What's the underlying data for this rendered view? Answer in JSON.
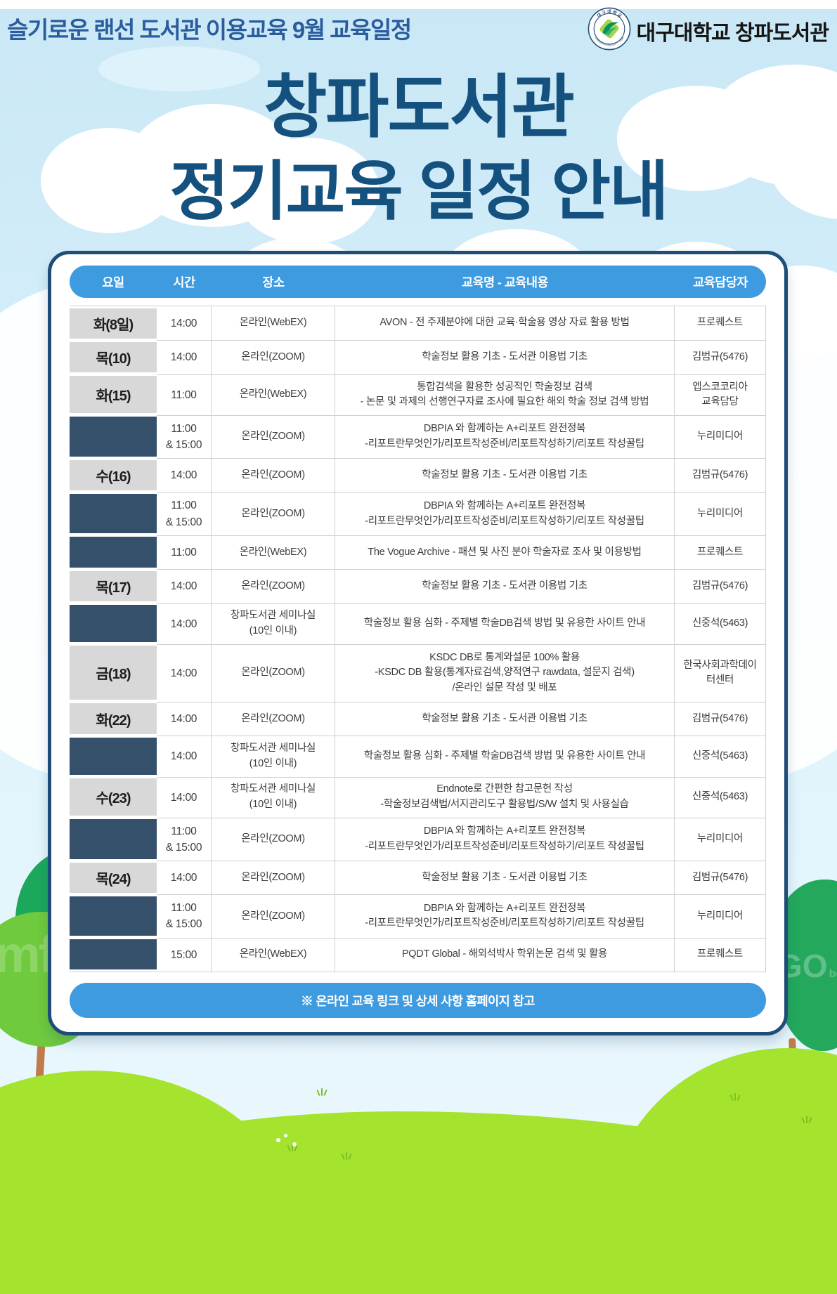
{
  "page": {
    "top_left_title": "슬기로운 랜선 도서관 이용교육 9월 교육일정",
    "org": {
      "name": "대구대학교 창파도서관",
      "logo_ring_top": "대구대학교",
      "logo_ring_bottom": "DAEGU UNIVERSITY 1956"
    },
    "main_title_line1": "창파도서관",
    "main_title_line2": "정기교육 일정 안내"
  },
  "table": {
    "columns": [
      "요일",
      "시간",
      "장소",
      "교육명 - 교육내용",
      "교육담당자"
    ],
    "rows": [
      {
        "day": "화(8일)",
        "day_style": "gray",
        "time": [
          "14:00"
        ],
        "place": [
          "온라인(WebEX)"
        ],
        "course": [
          "AVON - 전 주제분야에 대한 교육·학술용 영상 자료 활용 방법"
        ],
        "manager": [
          "프로퀘스트"
        ]
      },
      {
        "day": "목(10)",
        "day_style": "gray",
        "time": [
          "14:00"
        ],
        "place": [
          "온라인(ZOOM)"
        ],
        "course": [
          "학술정보 활용 기초 - 도서관 이용법 기초"
        ],
        "manager": [
          "김범규(5476)"
        ]
      },
      {
        "day": "화(15)",
        "day_style": "gray",
        "time": [
          "11:00"
        ],
        "place": [
          "온라인(WebEX)"
        ],
        "course": [
          "통합검색을 활용한 성공적인 학술정보 검색",
          "- 논문 및 과제의 선행연구자료 조사에 필요한 해외 학술 정보 검색 방법"
        ],
        "manager": [
          "엡스코코리아",
          "교육담당"
        ]
      },
      {
        "day": "",
        "day_style": "navy",
        "time": [
          "11:00",
          "& 15:00"
        ],
        "place": [
          "온라인(ZOOM)"
        ],
        "course": [
          "DBPIA 와 함께하는 A+리포트 완전정복",
          "-리포트란무엇인가/리포트작성준비/리포트작성하기/리포트 작성꿀팁"
        ],
        "manager": [
          "누리미디어"
        ]
      },
      {
        "day": "수(16)",
        "day_style": "gray",
        "time": [
          "14:00"
        ],
        "place": [
          "온라인(ZOOM)"
        ],
        "course": [
          "학술정보 활용 기초 - 도서관 이용법 기초"
        ],
        "manager": [
          "김범규(5476)"
        ]
      },
      {
        "day": "",
        "day_style": "navy",
        "time": [
          "11:00",
          "& 15:00"
        ],
        "place": [
          "온라인(ZOOM)"
        ],
        "course": [
          "DBPIA 와 함께하는 A+리포트 완전정복",
          "-리포트란무엇인가/리포트작성준비/리포트작성하기/리포트 작성꿀팁"
        ],
        "manager": [
          "누리미디어"
        ]
      },
      {
        "day": "",
        "day_style": "navy",
        "time": [
          "11:00"
        ],
        "place": [
          "온라인(WebEX)"
        ],
        "course": [
          "The Vogue Archive - 패션 및 사진 분야 학술자료 조사 및 이용방법"
        ],
        "manager": [
          "프로퀘스트"
        ]
      },
      {
        "day": "목(17)",
        "day_style": "gray",
        "time": [
          "14:00"
        ],
        "place": [
          "온라인(ZOOM)"
        ],
        "course": [
          "학술정보 활용 기초 - 도서관 이용법 기초"
        ],
        "manager": [
          "김범규(5476)"
        ]
      },
      {
        "day": "",
        "day_style": "navy",
        "time": [
          "14:00"
        ],
        "place": [
          "창파도서관 세미나실",
          "(10인 이내)"
        ],
        "course": [
          "학술정보 활용 심화 - 주제별 학술DB검색 방법 및 유용한 사이트 안내"
        ],
        "manager": [
          "신중석(5463)"
        ]
      },
      {
        "day": "금(18)",
        "day_style": "gray",
        "time": [
          "14:00"
        ],
        "place": [
          "온라인(ZOOM)"
        ],
        "course": [
          "KSDC DB로 통계와설문 100% 활용",
          "-KSDC DB 활용(통계자료검색,양적연구 rawdata, 설문지 검색)",
          "/온라인 설문 작성 및 배포"
        ],
        "manager": [
          "한국사회과학데이",
          "터센터"
        ]
      },
      {
        "day": "화(22)",
        "day_style": "gray",
        "time": [
          "14:00"
        ],
        "place": [
          "온라인(ZOOM)"
        ],
        "course": [
          "학술정보 활용 기초 - 도서관 이용법 기초"
        ],
        "manager": [
          "김범규(5476)"
        ]
      },
      {
        "day": "",
        "day_style": "navy",
        "time": [
          "14:00"
        ],
        "place": [
          "창파도서관 세미나실",
          "(10인 이내)"
        ],
        "course": [
          "학술정보 활용 심화 - 주제별 학술DB검색 방법 및 유용한 사이트 안내"
        ],
        "manager": [
          "신중석(5463)"
        ]
      },
      {
        "day": "수(23)",
        "day_style": "gray",
        "time": [
          "14:00"
        ],
        "place": [
          "창파도서관 세미나실",
          "(10인 이내)"
        ],
        "course": [
          "Endnote로 간편한 참고문헌 작성",
          "-학술정보검색법/서지관리도구 활용법/S/W 설치 및 사용실습"
        ],
        "manager": [
          "신중석(5463)"
        ]
      },
      {
        "day": "",
        "day_style": "navy",
        "time": [
          "11:00",
          "& 15:00"
        ],
        "place": [
          "온라인(ZOOM)"
        ],
        "course": [
          "DBPIA 와 함께하는 A+리포트 완전정복",
          "-리포트란무엇인가/리포트작성준비/리포트작성하기/리포트 작성꿀팁"
        ],
        "manager": [
          "누리미디어"
        ]
      },
      {
        "day": "목(24)",
        "day_style": "gray",
        "time": [
          "14:00"
        ],
        "place": [
          "온라인(ZOOM)"
        ],
        "course": [
          "학술정보 활용 기초 - 도서관 이용법 기초"
        ],
        "manager": [
          "김범규(5476)"
        ]
      },
      {
        "day": "",
        "day_style": "navy",
        "time": [
          "11:00",
          "& 15:00"
        ],
        "place": [
          "온라인(ZOOM)"
        ],
        "course": [
          "DBPIA 와 함께하는 A+리포트 완전정복",
          "-리포트란무엇인가/리포트작성준비/리포트작성하기/리포트 작성꿀팁"
        ],
        "manager": [
          "누리미디어"
        ]
      },
      {
        "day": "",
        "day_style": "navy",
        "time": [
          "15:00"
        ],
        "place": [
          "온라인(WebEX)"
        ],
        "course": [
          "PQDT Global - 해외석박사 학위논문 검색 및 활용"
        ],
        "manager": [
          "프로퀘스트"
        ]
      }
    ]
  },
  "footer": {
    "note": "※ 온라인 교육 링크 및 상세 사항 홈페이지 참고"
  },
  "watermarks": {
    "left": "mf",
    "right_main": "GO",
    "right_sub": "board"
  },
  "colors": {
    "header_pill_blue": "#3f9bdf",
    "navy_day_cell": "#35506b",
    "gray_day_cell": "#d8d8d8",
    "main_title_blue": "#15517f",
    "subtitle_blue": "#2b5c9e",
    "card_border_navy": "#1e4d77",
    "grass_green": "#a4e42e",
    "tree_dark_green": "#1ca85c",
    "tree_light_green": "#6fca3d",
    "sky_blue": "#d4eefa"
  }
}
